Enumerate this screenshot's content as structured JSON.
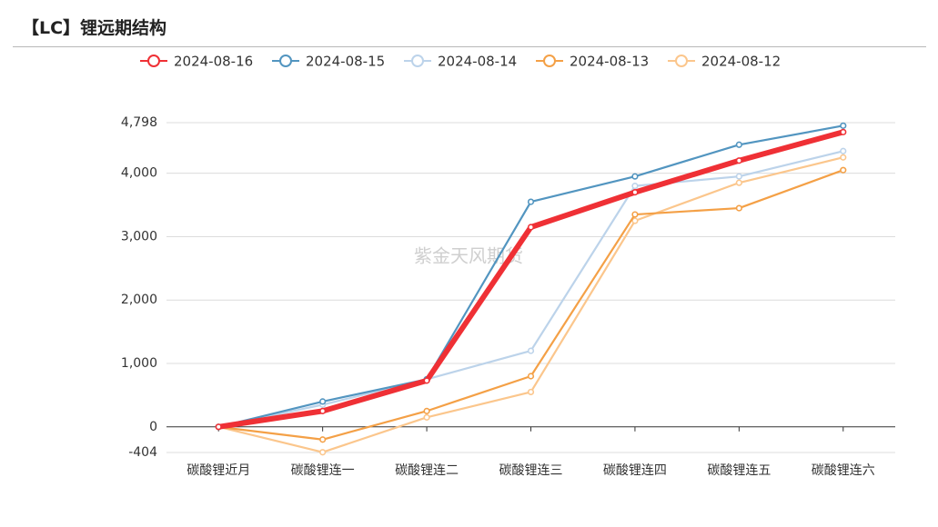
{
  "title": "【LC】锂远期结构",
  "watermark": "紫金天风期货",
  "chart_data": {
    "type": "line",
    "categories": [
      "碳酸锂近月",
      "碳酸锂连一",
      "碳酸锂连二",
      "碳酸锂连三",
      "碳酸锂连四",
      "碳酸锂连五",
      "碳酸锂连六"
    ],
    "yticks": [
      4798,
      4000,
      3000,
      2000,
      1000,
      0,
      -404
    ],
    "ytick_labels": [
      "4,798",
      "4,000",
      "3,000",
      "2,000",
      "1,000",
      "0",
      "-404"
    ],
    "ylim": [
      -404,
      4798
    ],
    "grid": true,
    "legend_position": "top-center",
    "series": [
      {
        "name": "2024-08-12",
        "color": "#fbc68c",
        "values": [
          0,
          -400,
          150,
          550,
          3250,
          3850,
          4250
        ]
      },
      {
        "name": "2024-08-13",
        "color": "#f4a046",
        "values": [
          0,
          -200,
          250,
          800,
          3350,
          3450,
          4050
        ]
      },
      {
        "name": "2024-08-14",
        "color": "#bcd3ea",
        "values": [
          0,
          350,
          750,
          1200,
          3800,
          3950,
          4350
        ]
      },
      {
        "name": "2024-08-15",
        "color": "#5295c0",
        "values": [
          0,
          400,
          750,
          3550,
          3950,
          4450,
          4750
        ]
      },
      {
        "name": "2024-08-16",
        "color": "#ef3035",
        "values": [
          0,
          250,
          730,
          3150,
          3700,
          4200,
          4650
        ]
      }
    ],
    "legend_order": [
      "2024-08-16",
      "2024-08-15",
      "2024-08-14",
      "2024-08-13",
      "2024-08-12"
    ]
  }
}
